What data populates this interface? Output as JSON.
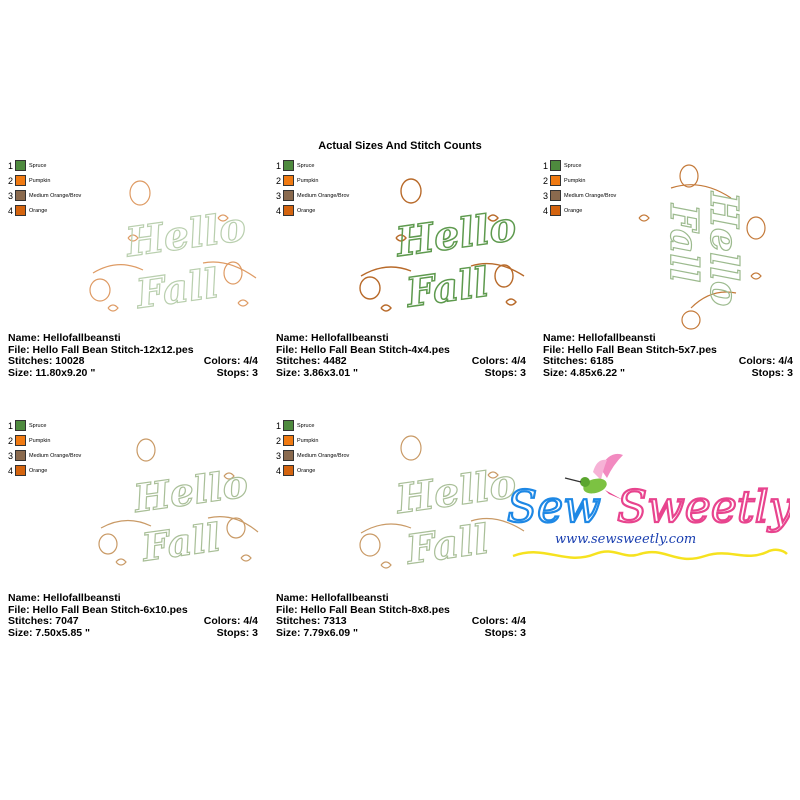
{
  "title": "Actual Sizes And Stitch Counts",
  "legend": [
    {
      "num": "1",
      "name": "Spruce",
      "color": "#4e8a3e"
    },
    {
      "num": "2",
      "name": "Pumpkin",
      "color": "#f07a12"
    },
    {
      "num": "3",
      "name": "Medium Orange/Brov",
      "color": "#8a6a4e"
    },
    {
      "num": "4",
      "name": "Orange",
      "color": "#d4640f"
    }
  ],
  "designs": [
    {
      "name_label": "Name: Hellofallbeansti",
      "file_label": "File: Hello Fall Bean Stitch-12x12.pes",
      "stitches_label": "Stitches: 10028",
      "colors_label": "Colors: 4/4",
      "size_label": "Size: 11.80x9.20 \"",
      "stops_label": "Stops: 3"
    },
    {
      "name_label": "Name: Hellofallbeansti",
      "file_label": "File: Hello Fall Bean Stitch-4x4.pes",
      "stitches_label": "Stitches: 4482",
      "colors_label": "Colors: 4/4",
      "size_label": "Size: 3.86x3.01 \"",
      "stops_label": "Stops: 3"
    },
    {
      "name_label": "Name: Hellofallbeansti",
      "file_label": "File: Hello Fall Bean Stitch-5x7.pes",
      "stitches_label": "Stitches: 6185",
      "colors_label": "Colors: 4/4",
      "size_label": "Size: 4.85x6.22 \"",
      "stops_label": "Stops: 3"
    },
    {
      "name_label": "Name: Hellofallbeansti",
      "file_label": "File: Hello Fall Bean Stitch-6x10.pes",
      "stitches_label": "Stitches: 7047",
      "colors_label": "Colors: 4/4",
      "size_label": "Size: 7.50x5.85 \"",
      "stops_label": "Stops: 3"
    },
    {
      "name_label": "Name: Hellofallbeansti",
      "file_label": "File: Hello Fall Bean Stitch-8x8.pes",
      "stitches_label": "Stitches: 7313",
      "colors_label": "Colors: 4/4",
      "size_label": "Size: 7.79x6.09 \"",
      "stops_label": "Stops: 3"
    }
  ],
  "artwork": {
    "line1": "Hello",
    "line2": "Fall"
  },
  "logo": {
    "brand": "Sew Sweetly",
    "word1": "Sew",
    "word2": "Sweetly",
    "url": "www.sewsweetly.com"
  }
}
